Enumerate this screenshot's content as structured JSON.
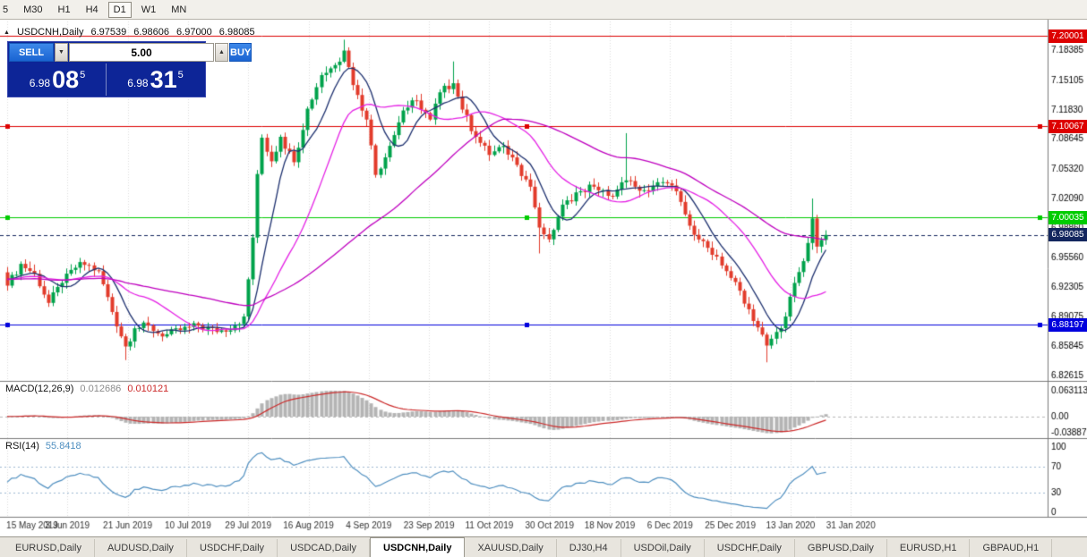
{
  "toolbar": {
    "timeframes": [
      {
        "label": "5",
        "active": false
      },
      {
        "label": "M30",
        "active": false
      },
      {
        "label": "H1",
        "active": false
      },
      {
        "label": "H4",
        "active": false
      },
      {
        "label": "D1",
        "active": true
      },
      {
        "label": "W1",
        "active": false
      },
      {
        "label": "MN",
        "active": false
      }
    ]
  },
  "symbol_bar": {
    "marker": "▲",
    "title": "USDCNH,Daily",
    "open": "6.97539",
    "high": "6.98606",
    "low": "6.97000",
    "close": "6.98085"
  },
  "trade_panel": {
    "sell_label": "SELL",
    "buy_label": "BUY",
    "volume": "5.00",
    "volume_down_glyph": "▼",
    "volume_up_glyph": "▲",
    "sell_price_base": "6.98",
    "sell_price_big": "08",
    "sell_price_sup": "5",
    "buy_price_base": "6.98",
    "buy_price_big": "31",
    "buy_price_sup": "5",
    "panel_color": "#0d2597"
  },
  "chart_data": {
    "type": "candlestick",
    "symbol": "USDCNH",
    "timeframe": "Daily",
    "ohlc_display": {
      "open": 6.97539,
      "high": 6.98606,
      "low": 6.97,
      "close": 6.98085
    },
    "y_axis_labels": [
      "7.18385",
      "7.15105",
      "7.11830",
      "7.08645",
      "7.05320",
      "7.02090",
      "6.98860",
      "6.95560",
      "6.92305",
      "6.89075",
      "6.85845",
      "6.82615"
    ],
    "x_axis_labels": [
      "15 May 2019",
      "3 Jun 2019",
      "21 Jun 2019",
      "10 Jul 2019",
      "29 Jul 2019",
      "16 Aug 2019",
      "4 Sep 2019",
      "23 Sep 2019",
      "11 Oct 2019",
      "30 Oct 2019",
      "18 Nov 2019",
      "6 Dec 2019",
      "25 Dec 2019",
      "13 Jan 2020",
      "31 Jan 2020"
    ],
    "hlines": [
      {
        "label": "7.20001",
        "price": 7.20001,
        "color": "#dd0000",
        "handles": false
      },
      {
        "label": "7.10067",
        "price": 7.10067,
        "color": "#dd0000",
        "handles": true
      },
      {
        "label": "7.00035",
        "price": 7.00035,
        "color": "#00cc00",
        "handles": true
      },
      {
        "label": "6.88197",
        "price": 6.88197,
        "color": "#0000dd",
        "handles": true
      }
    ],
    "current_price": {
      "label": "6.98085",
      "price": 6.98085,
      "bg": "#13265e"
    },
    "moving_averages": [
      {
        "period": 8,
        "color": "#1c2f6e"
      },
      {
        "period": 21,
        "color": "#e520e5"
      },
      {
        "period": 55,
        "color": "#bf00bf"
      }
    ],
    "candles": {
      "count": 181,
      "up_color": "#00a24b",
      "down_color": "#e23b2b",
      "close_anchors": [
        [
          0,
          6.925
        ],
        [
          3,
          6.949
        ],
        [
          6,
          6.938
        ],
        [
          9,
          6.906
        ],
        [
          12,
          6.928
        ],
        [
          16,
          6.951
        ],
        [
          20,
          6.941
        ],
        [
          23,
          6.896
        ],
        [
          26,
          6.858
        ],
        [
          28,
          6.878
        ],
        [
          31,
          6.881
        ],
        [
          34,
          6.869
        ],
        [
          38,
          6.876
        ],
        [
          42,
          6.881
        ],
        [
          46,
          6.874
        ],
        [
          50,
          6.881
        ],
        [
          52,
          6.891
        ],
        [
          53,
          6.932
        ],
        [
          54,
          6.978
        ],
        [
          55,
          7.048
        ],
        [
          56,
          7.088
        ],
        [
          58,
          7.062
        ],
        [
          60,
          7.089
        ],
        [
          63,
          7.061
        ],
        [
          66,
          7.12
        ],
        [
          69,
          7.157
        ],
        [
          72,
          7.168
        ],
        [
          74,
          7.184
        ],
        [
          76,
          7.146
        ],
        [
          79,
          7.108
        ],
        [
          81,
          7.047
        ],
        [
          84,
          7.079
        ],
        [
          87,
          7.118
        ],
        [
          90,
          7.129
        ],
        [
          93,
          7.108
        ],
        [
          95,
          7.138
        ],
        [
          98,
          7.148
        ],
        [
          100,
          7.119
        ],
        [
          103,
          7.089
        ],
        [
          106,
          7.069
        ],
        [
          109,
          7.079
        ],
        [
          112,
          7.058
        ],
        [
          115,
          7.034
        ],
        [
          117,
          6.989
        ],
        [
          119,
          6.976
        ],
        [
          121,
          7.001
        ],
        [
          123,
          7.019
        ],
        [
          126,
          7.029
        ],
        [
          129,
          7.034
        ],
        [
          132,
          7.024
        ],
        [
          134,
          7.031
        ],
        [
          136,
          7.041
        ],
        [
          138,
          7.034
        ],
        [
          141,
          7.029
        ],
        [
          144,
          7.039
        ],
        [
          147,
          7.029
        ],
        [
          150,
          6.991
        ],
        [
          153,
          6.974
        ],
        [
          155,
          6.959
        ],
        [
          158,
          6.941
        ],
        [
          160,
          6.929
        ],
        [
          163,
          6.899
        ],
        [
          165,
          6.879
        ],
        [
          167,
          6.859
        ],
        [
          169,
          6.874
        ],
        [
          171,
          6.891
        ],
        [
          173,
          6.928
        ],
        [
          175,
          6.952
        ],
        [
          176,
          6.972
        ],
        [
          177,
          6.999
        ],
        [
          178,
          6.968
        ],
        [
          179,
          6.9754
        ],
        [
          180,
          6.98085
        ]
      ],
      "wick_overrides": {
        "26": {
          "low": 6.843
        },
        "74": {
          "high": 7.196
        },
        "98": {
          "high": 7.172
        },
        "117": {
          "low": 6.9605
        },
        "136": {
          "high": 7.093
        },
        "167": {
          "low": 6.8405
        },
        "177": {
          "high": 7.021
        },
        "180": {
          "high": 6.98606,
          "low": 6.97
        }
      }
    }
  },
  "macd": {
    "name": "MACD(12,26,9)",
    "value": "0.012686",
    "signal_value": "0.010121",
    "axis_labels": [
      "0.063113",
      "0.00",
      "-0.038872"
    ],
    "histogram_color": "#b4b4b4",
    "signal_color": "#cc2a2a"
  },
  "rsi": {
    "name": "RSI(14)",
    "value": "55.8418",
    "axis_labels": [
      "100",
      "70",
      "30",
      "0"
    ],
    "levels": [
      70,
      30
    ],
    "line_color": "#4f8fc0"
  },
  "tabs": [
    {
      "label": "EURUSD,Daily",
      "active": false
    },
    {
      "label": "AUDUSD,Daily",
      "active": false
    },
    {
      "label": "USDCHF,Daily",
      "active": false
    },
    {
      "label": "USDCAD,Daily",
      "active": false
    },
    {
      "label": "USDCNH,Daily",
      "active": true
    },
    {
      "label": "XAUUSD,Daily",
      "active": false
    },
    {
      "label": "DJ30,H4",
      "active": false
    },
    {
      "label": "USDOil,Daily",
      "active": false
    },
    {
      "label": "USDCHF,Daily",
      "active": false
    },
    {
      "label": "GBPUSD,Daily",
      "active": false
    },
    {
      "label": "EURUSD,H1",
      "active": false
    },
    {
      "label": "GBPAUD,H1",
      "active": false
    }
  ]
}
